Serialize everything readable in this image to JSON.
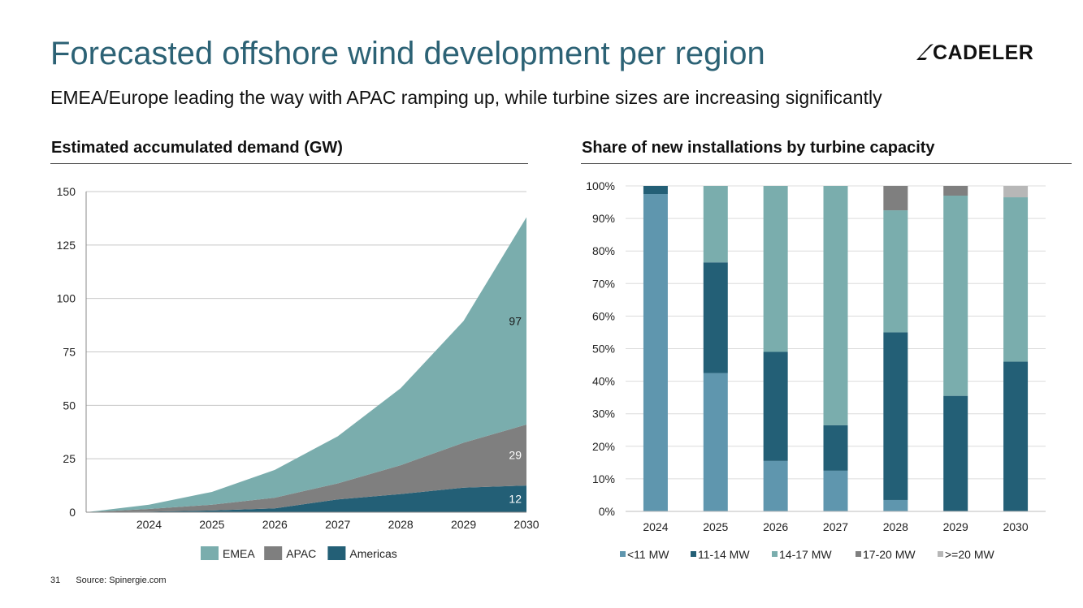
{
  "page": {
    "title": "Forecasted offshore wind development per region",
    "subtitle": "EMEA/Europe leading the way with APAC ramping up, while turbine sizes are increasing significantly",
    "logo": "CADELER",
    "page_number": "31",
    "source": "Source: Spinergie.com"
  },
  "chart_data": [
    {
      "type": "area",
      "stacked": true,
      "title": "Estimated accumulated demand (GW)",
      "x": [
        2023,
        2024,
        2025,
        2026,
        2027,
        2028,
        2029,
        2030
      ],
      "x_tick_labels": [
        "2024",
        "2025",
        "2026",
        "2027",
        "2028",
        "2029",
        "2030"
      ],
      "ylim": [
        0,
        150
      ],
      "y_ticks": [
        0,
        25,
        50,
        75,
        100,
        125,
        150
      ],
      "grid": true,
      "legend": "bottom",
      "series": [
        {
          "name": "Americas",
          "color": "#235f76",
          "values": [
            0,
            0.3,
            0.8,
            1.8,
            6,
            8.5,
            11.5,
            12.5
          ]
        },
        {
          "name": "APAC",
          "color": "#7f7f7f",
          "values": [
            0,
            1.2,
            2.7,
            5,
            7.5,
            13.5,
            21,
            28.5
          ]
        },
        {
          "name": "EMEA",
          "color": "#7aadad",
          "values": [
            0,
            2,
            6,
            13,
            22,
            36,
            57,
            97
          ]
        }
      ],
      "legend_order": [
        "EMEA",
        "APAC",
        "Americas"
      ],
      "annotations": [
        {
          "series": "EMEA",
          "text": "97",
          "color": "#1a1a1a"
        },
        {
          "series": "APAC",
          "text": "29",
          "color": "#ffffff"
        },
        {
          "series": "Americas",
          "text": "12",
          "color": "#ffffff"
        }
      ]
    },
    {
      "type": "bar",
      "stacked": true,
      "title": "Share of new installations by turbine capacity",
      "categories": [
        "2024",
        "2025",
        "2026",
        "2027",
        "2028",
        "2029",
        "2030"
      ],
      "ylim": [
        0,
        100
      ],
      "y_ticks": [
        "0%",
        "10%",
        "20%",
        "30%",
        "40%",
        "50%",
        "60%",
        "70%",
        "80%",
        "90%",
        "100%"
      ],
      "grid": true,
      "legend": "bottom",
      "series": [
        {
          "name": "<11 MW",
          "color": "#5f96ae",
          "values": [
            97.5,
            42.5,
            15.5,
            12.5,
            3.5,
            0,
            0
          ]
        },
        {
          "name": "11-14 MW",
          "color": "#235f76",
          "values": [
            2.5,
            34,
            33.5,
            14,
            51.5,
            35.5,
            46
          ]
        },
        {
          "name": "14-17 MW",
          "color": "#7aadad",
          "values": [
            0,
            23.5,
            51,
            73.5,
            37.5,
            61.5,
            50.5
          ]
        },
        {
          "name": "17-20 MW",
          "color": "#7f7f7f",
          "values": [
            0,
            0,
            0,
            0,
            7.5,
            3,
            0
          ]
        },
        {
          "name": ">=20 MW",
          "color": "#b7b7b7",
          "values": [
            0,
            0,
            0,
            0,
            0,
            0,
            3.5
          ]
        }
      ]
    }
  ]
}
